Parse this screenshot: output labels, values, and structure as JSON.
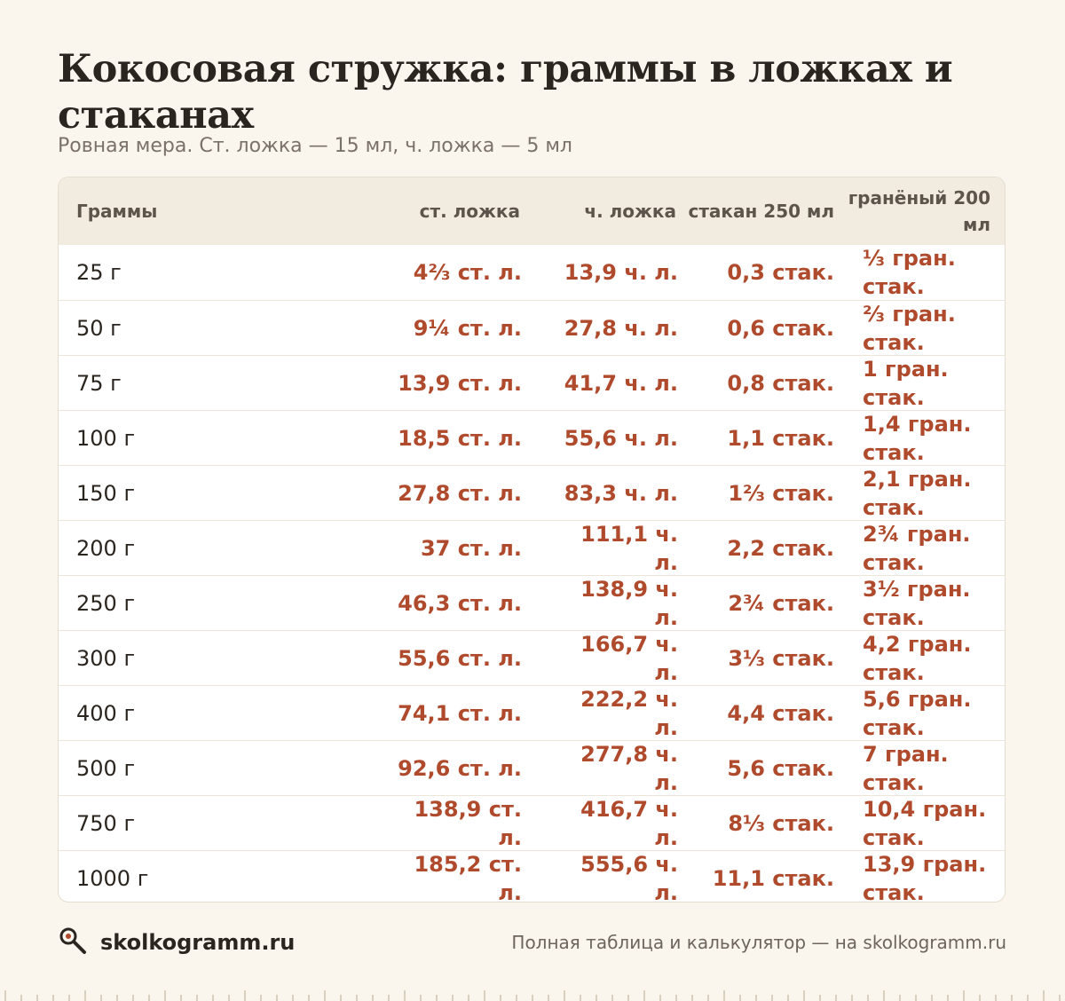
{
  "title": "Кокосовая стружка: граммы в ложках и стаканах",
  "subtitle": "Ровная мера. Ст. ложка — 15 мл, ч. ложка — 5 мл",
  "table": {
    "headers": [
      "Граммы",
      "ст. ложка",
      "ч. ложка",
      "стакан 250 мл",
      "гранёный 200 мл"
    ],
    "rows": [
      [
        "25 г",
        "4⅔ ст. л.",
        "13,9 ч. л.",
        "0,3 стак.",
        "⅓ гран. стак."
      ],
      [
        "50 г",
        "9¼ ст. л.",
        "27,8 ч. л.",
        "0,6 стак.",
        "⅔ гран. стак."
      ],
      [
        "75 г",
        "13,9 ст. л.",
        "41,7 ч. л.",
        "0,8 стак.",
        "1 гран. стак."
      ],
      [
        "100 г",
        "18,5 ст. л.",
        "55,6 ч. л.",
        "1,1 стак.",
        "1,4 гран. стак."
      ],
      [
        "150 г",
        "27,8 ст. л.",
        "83,3 ч. л.",
        "1⅔ стак.",
        "2,1 гран. стак."
      ],
      [
        "200 г",
        "37 ст. л.",
        "111,1 ч. л.",
        "2,2 стак.",
        "2¾ гран. стак."
      ],
      [
        "250 г",
        "46,3 ст. л.",
        "138,9 ч. л.",
        "2¾ стак.",
        "3½ гран. стак."
      ],
      [
        "300 г",
        "55,6 ст. л.",
        "166,7 ч. л.",
        "3⅓ стак.",
        "4,2 гран. стак."
      ],
      [
        "400 г",
        "74,1 ст. л.",
        "222,2 ч. л.",
        "4,4 стак.",
        "5,6 гран. стак."
      ],
      [
        "500 г",
        "92,6 ст. л.",
        "277,8 ч. л.",
        "5,6 стак.",
        "7 гран. стак."
      ],
      [
        "750 г",
        "138,9 ст. л.",
        "416,7 ч. л.",
        "8⅓ стак.",
        "10,4 гран. стак."
      ],
      [
        "1000 г",
        "185,2 ст. л.",
        "555,6 ч. л.",
        "11,1 стак.",
        "13,9 гран. стак."
      ]
    ]
  },
  "footer": {
    "logo_icon": "magnifier-icon",
    "brand": "skolkogramm.ru",
    "note": "Полная таблица и калькулятор — на skolkogramm.ru"
  },
  "colors": {
    "background": "#faf6ee",
    "accent": "#b04a2c",
    "header_bg": "#f1ebe0",
    "text": "#2b2520"
  }
}
